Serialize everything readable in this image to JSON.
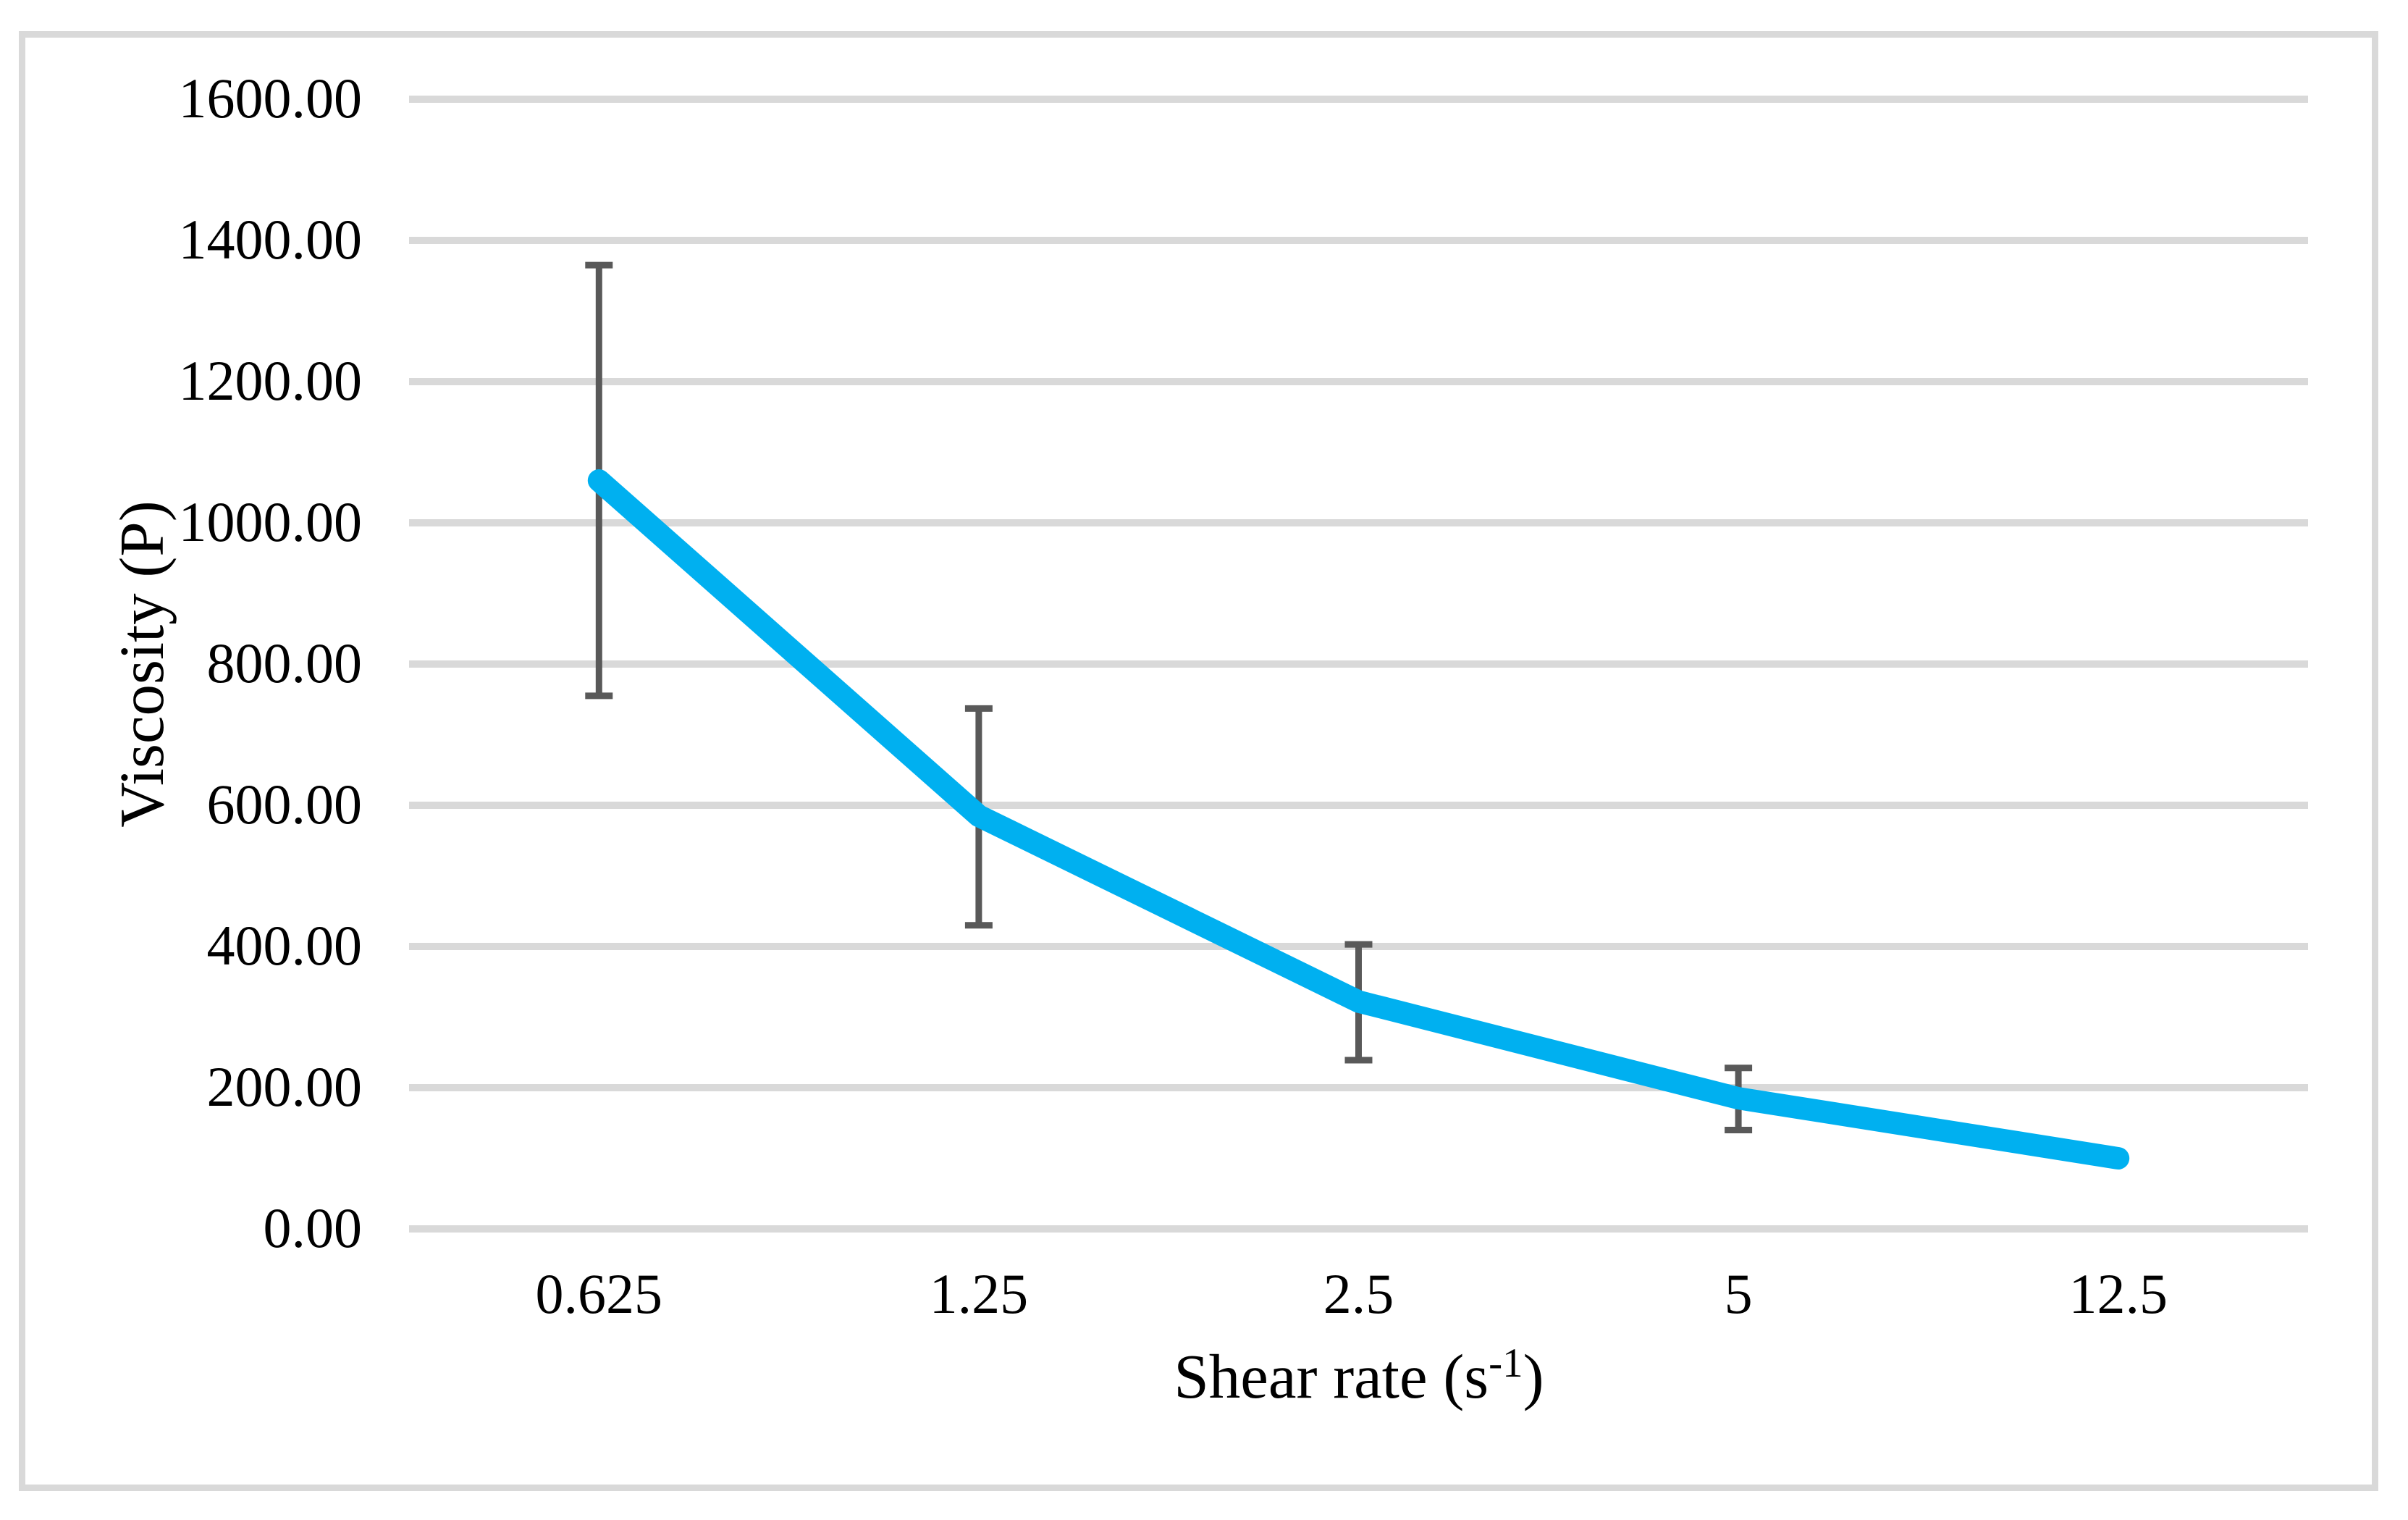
{
  "chart_data": {
    "type": "line",
    "title": "",
    "categories": [
      "0.625",
      "1.25",
      "2.5",
      "5",
      "12.5"
    ],
    "series": [
      {
        "name": "Viscosity",
        "color": "#00b0f0",
        "values": [
          1060,
          585,
          322,
          185,
          100
        ],
        "error_low": [
          755,
          430,
          239,
          140,
          null
        ],
        "error_high": [
          1365,
          737,
          403,
          228,
          null
        ]
      }
    ],
    "xlabel_parts": {
      "prefix": "Shear rate (s",
      "superscript": "-1",
      "suffix": ")"
    },
    "ylabel": "Viscosity (P)",
    "ylim": [
      0,
      1600
    ],
    "y_tick_step": 200,
    "y_ticks": [
      {
        "value": 0,
        "label": "0.00"
      },
      {
        "value": 200,
        "label": "200.00"
      },
      {
        "value": 400,
        "label": "400.00"
      },
      {
        "value": 600,
        "label": "600.00"
      },
      {
        "value": 800,
        "label": "800.00"
      },
      {
        "value": 1000,
        "label": "1000.00"
      },
      {
        "value": 1200,
        "label": "1200.00"
      },
      {
        "value": 1400,
        "label": "1400.00"
      },
      {
        "value": 1600,
        "label": "1600.00"
      }
    ],
    "grid": "horizontal-only",
    "legend": "none",
    "colors": {
      "line": "#00b0f0",
      "error_bar": "#595959",
      "gridline": "#d9d9d9",
      "figure_border": "#d9d9d9",
      "text": "#000000",
      "background": "#ffffff"
    }
  }
}
